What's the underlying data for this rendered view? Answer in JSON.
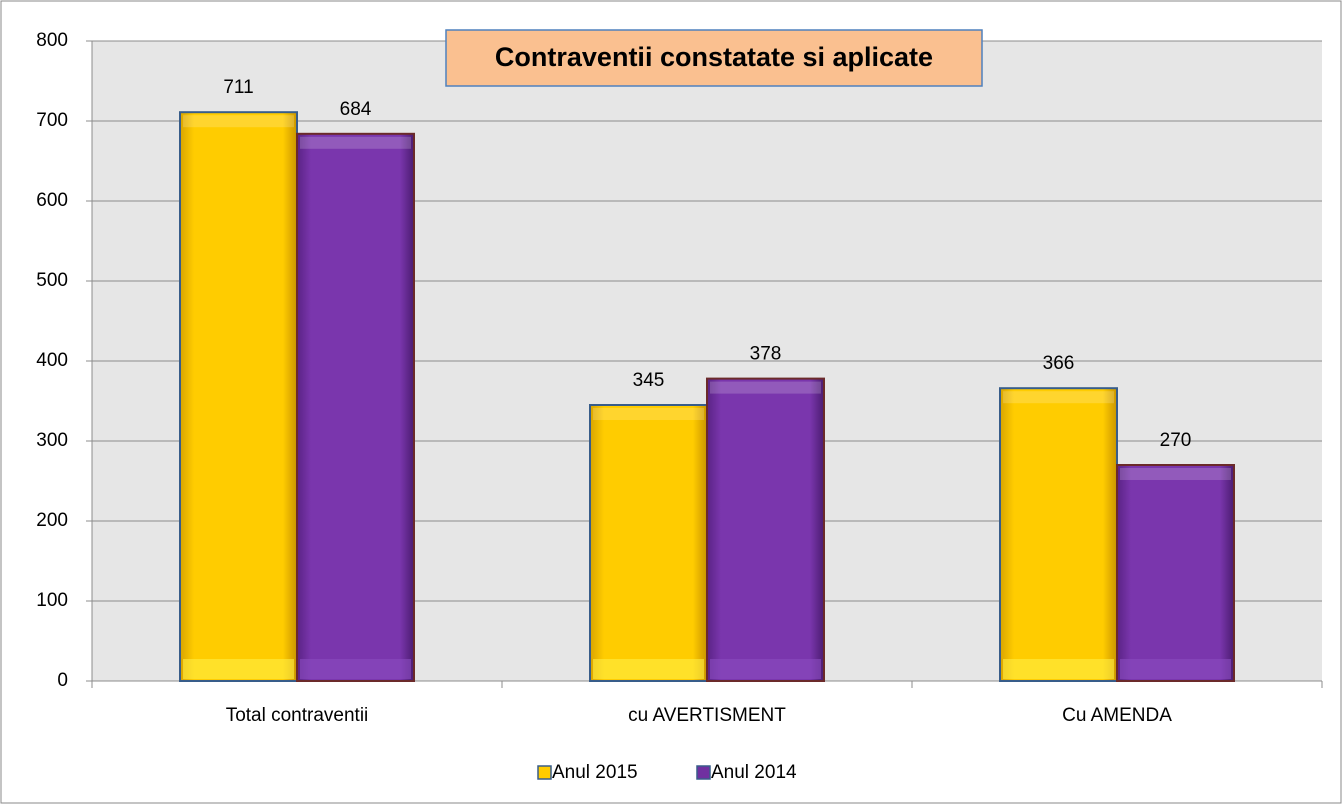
{
  "chart_data": {
    "type": "bar",
    "title": "Contraventii constatate si aplicate",
    "categories": [
      "Total contraventii",
      "cu AVERTISMENT",
      "Cu AMENDA"
    ],
    "series": [
      {
        "name": "Anul 2015",
        "color": "#ffcc00",
        "values": [
          711,
          345,
          366
        ]
      },
      {
        "name": "Anul 2014",
        "color": "#7030a0",
        "values": [
          684,
          378,
          270
        ]
      }
    ],
    "ylim": [
      0,
      800
    ],
    "yticks": [
      0,
      100,
      200,
      300,
      400,
      500,
      600,
      700,
      800
    ],
    "grid": true,
    "legend": "bottom"
  }
}
